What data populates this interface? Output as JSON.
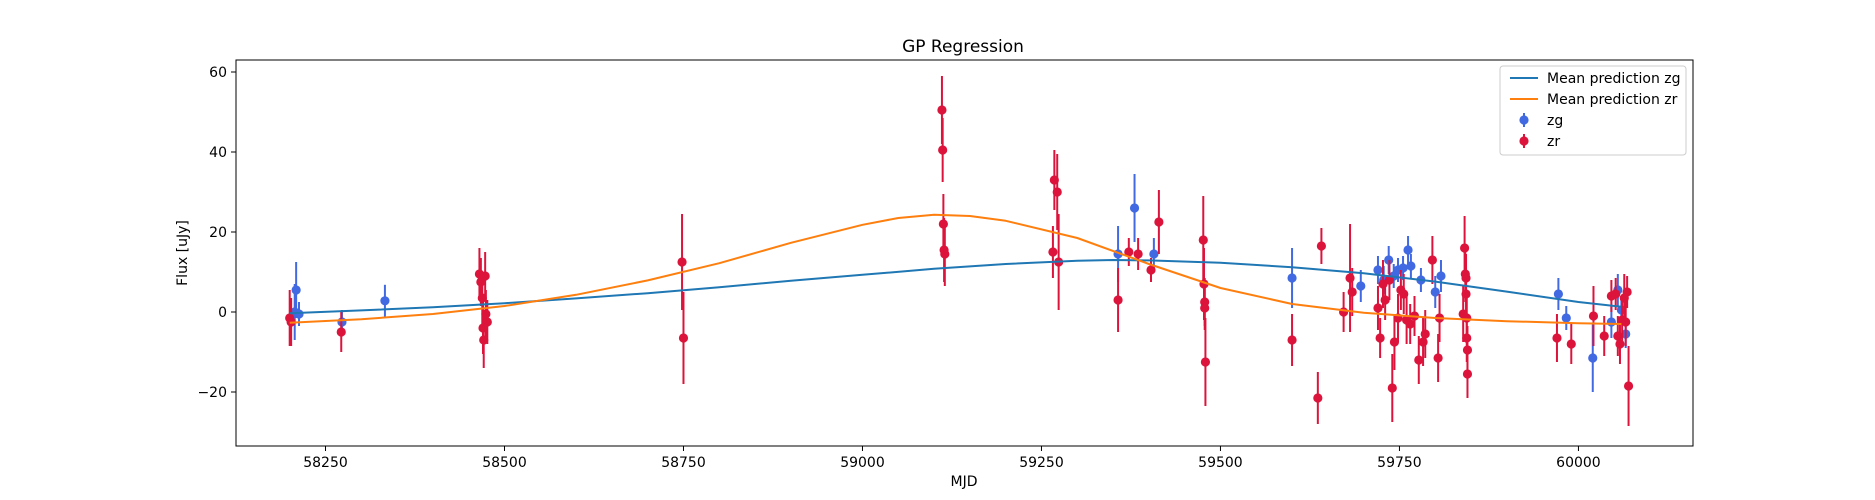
{
  "chart_data": {
    "type": "scatter",
    "title": "GP Regression",
    "xlabel": "MJD",
    "ylabel": "Flux [uJy]",
    "xlim": [
      58125,
      60160
    ],
    "ylim": [
      -33.5,
      63
    ],
    "xticks": [
      58250,
      58500,
      58750,
      59000,
      59250,
      59500,
      59750,
      60000
    ],
    "yticks": [
      -20,
      0,
      20,
      40,
      60
    ],
    "grid": false,
    "legend_position": "top-right",
    "legend": [
      "Mean prediction zg",
      "Mean prediction zr",
      "zg",
      "zr"
    ],
    "colors": {
      "mean_zg": "#1f77b4",
      "mean_zr": "#ff7f0e",
      "zg": "#4169e1",
      "zr": "#dc143c"
    },
    "series": [
      {
        "name": "Mean prediction zg",
        "kind": "line",
        "color": "#1f77b4",
        "x": [
          58200,
          58300,
          58400,
          58500,
          58600,
          58700,
          58800,
          58900,
          59000,
          59100,
          59200,
          59300,
          59350,
          59400,
          59500,
          59600,
          59700,
          59800,
          59900,
          60000,
          60060
        ],
        "y": [
          -0.3,
          0.4,
          1.2,
          2.2,
          3.4,
          4.7,
          6.2,
          7.8,
          9.3,
          10.8,
          12.0,
          12.8,
          13.0,
          12.9,
          12.3,
          11.2,
          9.7,
          7.6,
          5.1,
          2.5,
          1.3
        ]
      },
      {
        "name": "Mean prediction zr",
        "kind": "line",
        "color": "#ff7f0e",
        "x": [
          58200,
          58300,
          58400,
          58500,
          58600,
          58700,
          58800,
          58900,
          59000,
          59050,
          59100,
          59150,
          59200,
          59300,
          59400,
          59500,
          59600,
          59700,
          59800,
          59900,
          60000,
          60060
        ],
        "y": [
          -2.7,
          -1.8,
          -0.5,
          1.5,
          4.3,
          7.9,
          12.2,
          17.3,
          21.8,
          23.5,
          24.3,
          24.0,
          22.8,
          18.5,
          12.0,
          6.0,
          2.0,
          -0.2,
          -1.5,
          -2.3,
          -2.8,
          -3.0
        ]
      },
      {
        "name": "zg",
        "kind": "errorbar",
        "color": "#4169e1",
        "points": [
          {
            "x": 58207,
            "y": 0.0,
            "err": 7.0
          },
          {
            "x": 58209,
            "y": 5.5,
            "err": 7.0
          },
          {
            "x": 58213,
            "y": -0.5,
            "err": 3.0
          },
          {
            "x": 58273,
            "y": -2.5,
            "err": 3.0
          },
          {
            "x": 58333,
            "y": 2.8,
            "err": 4.0
          },
          {
            "x": 59357,
            "y": 14.5,
            "err": 7.0
          },
          {
            "x": 59380,
            "y": 26.0,
            "err": 8.5
          },
          {
            "x": 59407,
            "y": 14.5,
            "err": 4.0
          },
          {
            "x": 59600,
            "y": 8.5,
            "err": 7.5
          },
          {
            "x": 59696,
            "y": 6.5,
            "err": 4.0
          },
          {
            "x": 59720,
            "y": 10.5,
            "err": 3.5
          },
          {
            "x": 59728,
            "y": 8.0,
            "err": 3.5
          },
          {
            "x": 59735,
            "y": 13.0,
            "err": 3.5
          },
          {
            "x": 59742,
            "y": 9.0,
            "err": 3.0
          },
          {
            "x": 59748,
            "y": 10.5,
            "err": 3.0
          },
          {
            "x": 59755,
            "y": 11.0,
            "err": 3.0
          },
          {
            "x": 59762,
            "y": 15.5,
            "err": 3.5
          },
          {
            "x": 59766,
            "y": 11.5,
            "err": 3.0
          },
          {
            "x": 59780,
            "y": 8.0,
            "err": 3.0
          },
          {
            "x": 59800,
            "y": 5.0,
            "err": 4.0
          },
          {
            "x": 59808,
            "y": 9.0,
            "err": 4.0
          },
          {
            "x": 59972,
            "y": 4.5,
            "err": 4.0
          },
          {
            "x": 59983,
            "y": -1.5,
            "err": 3.0
          },
          {
            "x": 60020,
            "y": -11.5,
            "err": 8.5
          },
          {
            "x": 60046,
            "y": -2.5,
            "err": 4.0
          },
          {
            "x": 60055,
            "y": 5.5,
            "err": 4.0
          },
          {
            "x": 60060,
            "y": 0.5,
            "err": 3.5
          },
          {
            "x": 60066,
            "y": -5.5,
            "err": 3.5
          }
        ]
      },
      {
        "name": "zr",
        "kind": "errorbar",
        "color": "#dc143c",
        "points": [
          {
            "x": 58200,
            "y": -1.5,
            "err": 7.0
          },
          {
            "x": 58202,
            "y": -2.5,
            "err": 6.0
          },
          {
            "x": 58272,
            "y": -5.0,
            "err": 5.0
          },
          {
            "x": 58465,
            "y": 9.5,
            "err": 6.5
          },
          {
            "x": 58467,
            "y": 7.5,
            "err": 6.0
          },
          {
            "x": 58469,
            "y": 3.5,
            "err": 6.5
          },
          {
            "x": 58470,
            "y": -4.0,
            "err": 6.5
          },
          {
            "x": 58471,
            "y": -7.0,
            "err": 7.0
          },
          {
            "x": 58473,
            "y": 9.0,
            "err": 6.0
          },
          {
            "x": 58474,
            "y": -0.5,
            "err": 6.0
          },
          {
            "x": 58476,
            "y": -2.5,
            "err": 5.5
          },
          {
            "x": 58748,
            "y": 12.5,
            "err": 12.0
          },
          {
            "x": 58750,
            "y": -6.5,
            "err": 11.5
          },
          {
            "x": 59111,
            "y": 50.5,
            "err": 8.5
          },
          {
            "x": 59112,
            "y": 40.5,
            "err": 8.0
          },
          {
            "x": 59113,
            "y": 22.0,
            "err": 7.5
          },
          {
            "x": 59114,
            "y": 15.5,
            "err": 8.0
          },
          {
            "x": 59115,
            "y": 14.5,
            "err": 8.0
          },
          {
            "x": 59266,
            "y": 15.0,
            "err": 6.5
          },
          {
            "x": 59268,
            "y": 33.0,
            "err": 7.5
          },
          {
            "x": 59272,
            "y": 30.0,
            "err": 9.5
          },
          {
            "x": 59274,
            "y": 12.5,
            "err": 12.0
          },
          {
            "x": 59357,
            "y": 3.0,
            "err": 8.0
          },
          {
            "x": 59372,
            "y": 15.0,
            "err": 3.5
          },
          {
            "x": 59385,
            "y": 14.5,
            "err": 4.0
          },
          {
            "x": 59403,
            "y": 10.5,
            "err": 3.0
          },
          {
            "x": 59414,
            "y": 22.5,
            "err": 8.0
          },
          {
            "x": 59476,
            "y": 18.0,
            "err": 11.0
          },
          {
            "x": 59477,
            "y": 7.0,
            "err": 9.0
          },
          {
            "x": 59478,
            "y": 2.5,
            "err": 6.0
          },
          {
            "x": 59478,
            "y": 1.0,
            "err": 5.5
          },
          {
            "x": 59479,
            "y": -12.5,
            "err": 11.0
          },
          {
            "x": 59600,
            "y": -7.0,
            "err": 6.5
          },
          {
            "x": 59636,
            "y": -21.5,
            "err": 6.5
          },
          {
            "x": 59641,
            "y": 16.5,
            "err": 4.5
          },
          {
            "x": 59672,
            "y": 0.0,
            "err": 5.0
          },
          {
            "x": 59681,
            "y": 8.5,
            "err": 13.5
          },
          {
            "x": 59684,
            "y": 5.0,
            "err": 6.0
          },
          {
            "x": 59720,
            "y": 1.0,
            "err": 5.5
          },
          {
            "x": 59723,
            "y": -6.5,
            "err": 5.0
          },
          {
            "x": 59727,
            "y": 7.0,
            "err": 6.0
          },
          {
            "x": 59730,
            "y": 3.0,
            "err": 5.0
          },
          {
            "x": 59736,
            "y": 8.0,
            "err": 5.0
          },
          {
            "x": 59740,
            "y": -19.0,
            "err": 8.5
          },
          {
            "x": 59743,
            "y": -7.5,
            "err": 7.0
          },
          {
            "x": 59748,
            "y": -1.5,
            "err": 6.0
          },
          {
            "x": 59752,
            "y": 5.5,
            "err": 5.0
          },
          {
            "x": 59756,
            "y": 4.5,
            "err": 5.0
          },
          {
            "x": 59760,
            "y": -2.0,
            "err": 6.0
          },
          {
            "x": 59765,
            "y": -3.0,
            "err": 5.0
          },
          {
            "x": 59771,
            "y": -1.0,
            "err": 5.0
          },
          {
            "x": 59777,
            "y": -12.0,
            "err": 6.0
          },
          {
            "x": 59783,
            "y": -7.5,
            "err": 6.0
          },
          {
            "x": 59786,
            "y": -5.5,
            "err": 6.0
          },
          {
            "x": 59796,
            "y": 13.0,
            "err": 6.0
          },
          {
            "x": 59804,
            "y": -11.5,
            "err": 6.0
          },
          {
            "x": 59806,
            "y": -1.5,
            "err": 6.0
          },
          {
            "x": 59839,
            "y": -0.5,
            "err": 7.0
          },
          {
            "x": 59841,
            "y": 16.0,
            "err": 8.0
          },
          {
            "x": 59842,
            "y": 9.5,
            "err": 7.0
          },
          {
            "x": 59843,
            "y": 8.5,
            "err": 6.0
          },
          {
            "x": 59843,
            "y": 4.5,
            "err": 5.0
          },
          {
            "x": 59844,
            "y": -1.5,
            "err": 6.0
          },
          {
            "x": 59844,
            "y": -6.5,
            "err": 6.0
          },
          {
            "x": 59845,
            "y": -9.5,
            "err": 6.0
          },
          {
            "x": 59845,
            "y": -15.5,
            "err": 6.0
          },
          {
            "x": 59970,
            "y": -6.5,
            "err": 6.0
          },
          {
            "x": 59990,
            "y": -8.0,
            "err": 5.0
          },
          {
            "x": 60021,
            "y": -1.0,
            "err": 7.5
          },
          {
            "x": 60036,
            "y": -6.0,
            "err": 5.0
          },
          {
            "x": 60046,
            "y": 4.0,
            "err": 4.0
          },
          {
            "x": 60052,
            "y": 4.5,
            "err": 4.0
          },
          {
            "x": 60055,
            "y": -6.0,
            "err": 5.0
          },
          {
            "x": 60058,
            "y": -8.0,
            "err": 5.0
          },
          {
            "x": 60061,
            "y": -2.0,
            "err": 6.0
          },
          {
            "x": 60064,
            "y": 3.5,
            "err": 6.0
          },
          {
            "x": 60066,
            "y": -2.5,
            "err": 6.0
          },
          {
            "x": 60068,
            "y": 5.0,
            "err": 4.0
          },
          {
            "x": 60070,
            "y": -18.5,
            "err": 10.0
          }
        ]
      }
    ]
  }
}
